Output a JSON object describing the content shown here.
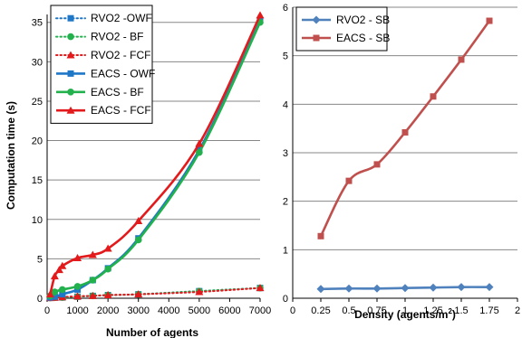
{
  "chart_data": [
    {
      "type": "line",
      "xlabel": "Number of agents",
      "ylabel": "Computation time (s)",
      "xlim": [
        0,
        7000
      ],
      "ylim": [
        0,
        36
      ],
      "xticks": [
        0,
        1000,
        2000,
        3000,
        4000,
        5000,
        6000,
        7000
      ],
      "yticks": [
        0,
        5,
        10,
        15,
        20,
        25,
        30,
        35
      ],
      "grid": "horizontal",
      "legend_position": "top-left",
      "series": [
        {
          "name": "RVO2 -OWF",
          "color": "#1F77C8",
          "marker": "square",
          "dash": "dotted",
          "x": [
            100,
            250,
            500,
            1000,
            1500,
            2000,
            3000,
            5000,
            7000
          ],
          "y": [
            0.05,
            0.08,
            0.1,
            0.2,
            0.3,
            0.4,
            0.5,
            0.9,
            1.3
          ]
        },
        {
          "name": "RVO2 - BF",
          "color": "#22B14C",
          "marker": "circle",
          "dash": "dotted",
          "x": [
            100,
            250,
            500,
            1000,
            1500,
            2000,
            3000,
            5000,
            7000
          ],
          "y": [
            0.05,
            0.08,
            0.1,
            0.2,
            0.3,
            0.4,
            0.5,
            0.9,
            1.3
          ]
        },
        {
          "name": "RVO2 - FCF",
          "color": "#E31A1C",
          "marker": "triangle",
          "dash": "dotted",
          "x": [
            100,
            250,
            500,
            1000,
            1500,
            2000,
            3000,
            5000,
            7000
          ],
          "y": [
            0.05,
            0.08,
            0.15,
            0.25,
            0.3,
            0.4,
            0.5,
            0.8,
            1.3
          ]
        },
        {
          "name": "EACS - OWF",
          "color": "#1F77C8",
          "marker": "square",
          "dash": "solid",
          "x": [
            100,
            250,
            500,
            1000,
            1500,
            2000,
            3000,
            5000,
            7000
          ],
          "y": [
            0.1,
            0.2,
            0.5,
            1.1,
            2.3,
            3.8,
            7.6,
            18.8,
            35.2
          ]
        },
        {
          "name": "EACS - BF",
          "color": "#22B14C",
          "marker": "circle",
          "dash": "solid",
          "x": [
            100,
            250,
            500,
            1000,
            1500,
            2000,
            3000,
            5000,
            7000
          ],
          "y": [
            0.3,
            0.8,
            1.1,
            1.5,
            2.3,
            3.7,
            7.4,
            18.5,
            35.0
          ]
        },
        {
          "name": "EACS - FCF",
          "color": "#E31A1C",
          "marker": "triangle",
          "dash": "solid",
          "x": [
            100,
            250,
            400,
            500,
            1000,
            1500,
            2000,
            3000,
            5000,
            7000
          ],
          "y": [
            0.5,
            2.8,
            3.6,
            4.1,
            5.1,
            5.5,
            6.3,
            9.8,
            19.6,
            35.9
          ]
        }
      ]
    },
    {
      "type": "line",
      "xlabel": "Density (agents/m",
      "xlabel_sup": "2",
      "xlabel_end": ")",
      "xlim": [
        0,
        2
      ],
      "ylim": [
        0,
        6
      ],
      "xticks": [
        0,
        0.25,
        0.5,
        0.75,
        1,
        1.25,
        1.5,
        1.75,
        2
      ],
      "xtick_labels": [
        "0",
        "0.25",
        "0.5",
        "0.75",
        "1",
        "1.25",
        "1.5",
        "1.75",
        "2"
      ],
      "yticks": [
        0,
        1,
        2,
        3,
        4,
        5,
        6
      ],
      "grid": "horizontal",
      "legend_position": "top-left",
      "series": [
        {
          "name": "RVO2 - SB",
          "color": "#4F81BD",
          "marker": "diamond",
          "dash": "solid",
          "x": [
            0.25,
            0.5,
            0.75,
            1,
            1.25,
            1.5,
            1.75
          ],
          "y": [
            0.19,
            0.2,
            0.2,
            0.21,
            0.22,
            0.23,
            0.23
          ]
        },
        {
          "name": "EACS - SB",
          "color": "#C0504D",
          "marker": "square",
          "dash": "solid",
          "x": [
            0.25,
            0.5,
            0.75,
            1,
            1.25,
            1.5,
            1.75
          ],
          "y": [
            1.28,
            2.42,
            2.76,
            3.42,
            4.16,
            4.92,
            5.72
          ]
        }
      ]
    }
  ]
}
